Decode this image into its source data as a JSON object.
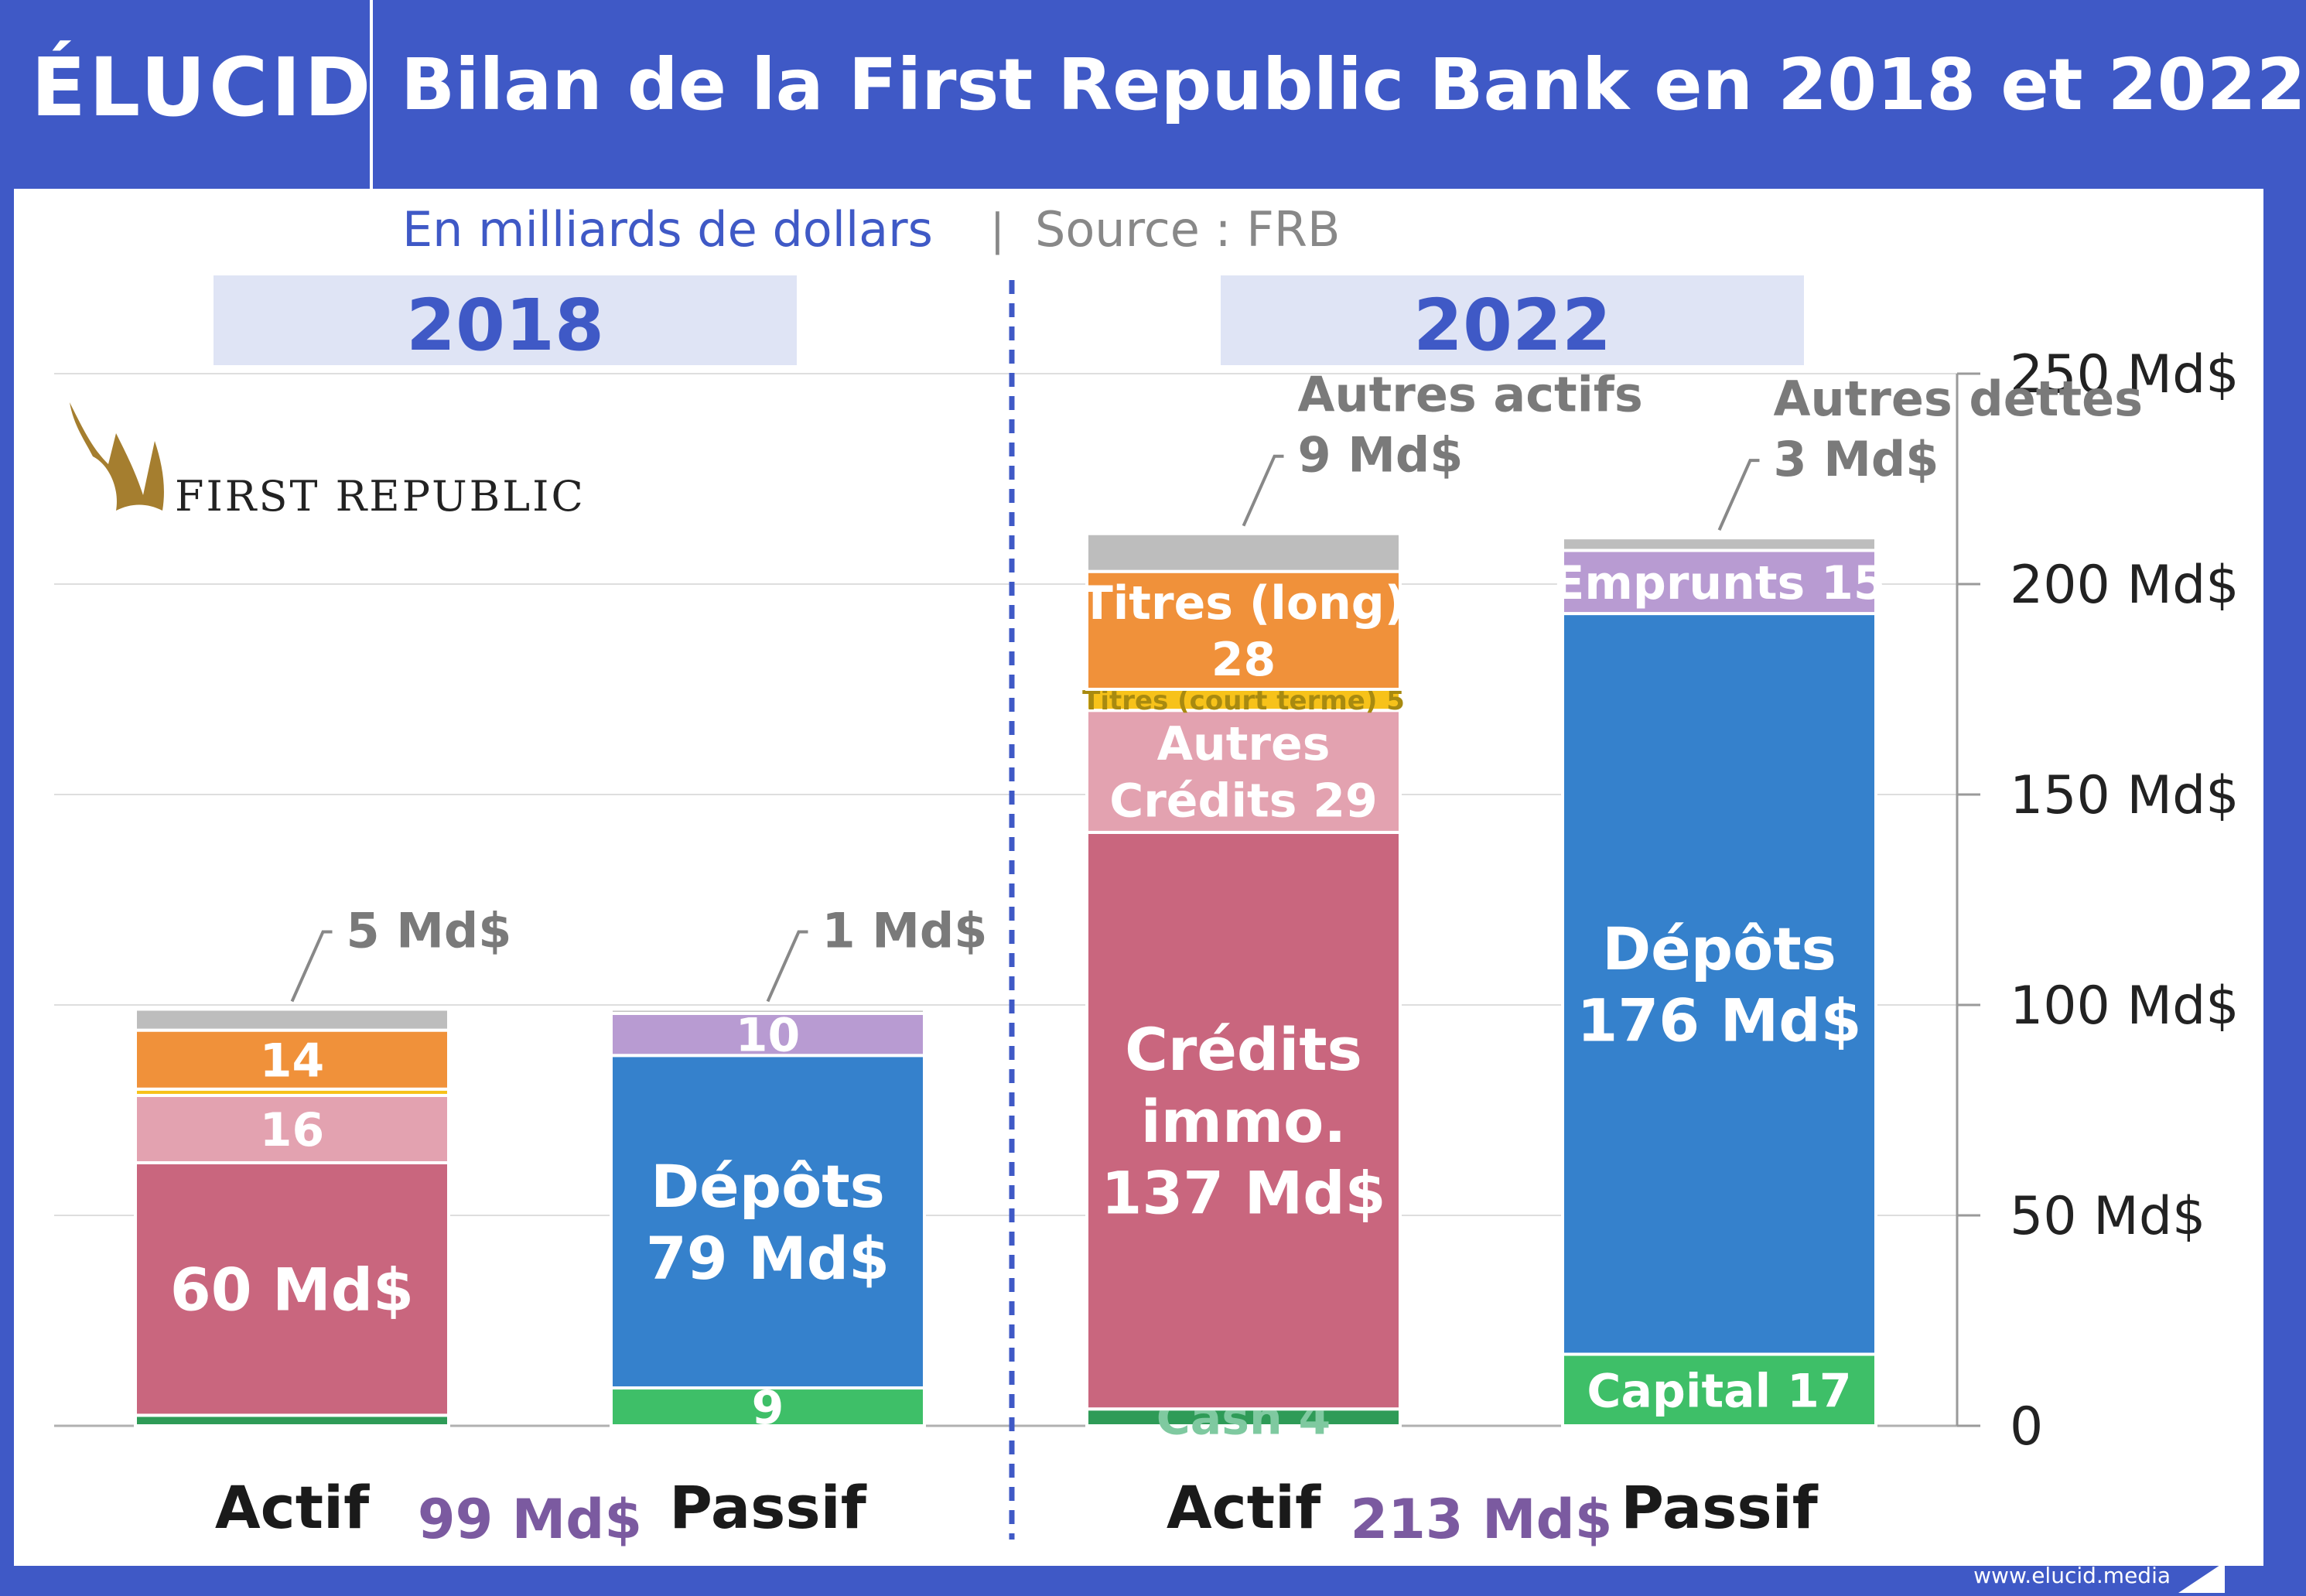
{
  "header": {
    "logo": "ÉLUCID",
    "title": "Bilan de la First Republic Bank en 2018 et 2022"
  },
  "subtitle": {
    "unit": "En milliards de dollars",
    "separator": "|",
    "source": "Source : FRB"
  },
  "brand": {
    "name": "First Republic"
  },
  "footer": {
    "url": "www.elucid.media"
  },
  "colors": {
    "header_bg": "#3f59c6",
    "credits_immo": "#c9667e",
    "autres_credits": "#e3a2b0",
    "titres_court": "#f7c21a",
    "titres_long": "#f0913a",
    "autres_actifs": "#bdbdbd",
    "cash": "#2e9b57",
    "capital": "#3ebf68",
    "depots": "#3581cc",
    "emprunts": "#b89bd2",
    "autres_dettes": "#bdbdbd",
    "total": "#7b5aa0"
  },
  "chart_data": {
    "type": "bar",
    "stacked": true,
    "y_axis": {
      "min": 0,
      "max": 250,
      "ticks": [
        0,
        50,
        100,
        150,
        200,
        250
      ],
      "tick_labels": [
        "0",
        "50 Md$",
        "100 Md$",
        "150 Md$",
        "200 Md$",
        "250 Md$"
      ],
      "position": "right",
      "grid": true
    },
    "groups": [
      {
        "year": "2018",
        "total_label": "99 Md$",
        "bars": [
          {
            "label": "Actif",
            "segments": [
              {
                "key": "cash",
                "value": 2.5,
                "label": ""
              },
              {
                "key": "credits_immo",
                "value": 60,
                "label": "60 Md$"
              },
              {
                "key": "autres_credits",
                "value": 16,
                "label": "16"
              },
              {
                "key": "titres_court",
                "value": 1.5,
                "label": ""
              },
              {
                "key": "titres_long",
                "value": 14,
                "label": "14"
              },
              {
                "key": "autres_actifs",
                "value": 5,
                "label": ""
              }
            ],
            "callout": {
              "text": "5 Md$"
            }
          },
          {
            "label": "Passif",
            "segments": [
              {
                "key": "capital",
                "value": 9,
                "label": "9"
              },
              {
                "key": "depots",
                "value": 79,
                "label": "Dépôts\n79 Md$"
              },
              {
                "key": "emprunts",
                "value": 10,
                "label": "10"
              },
              {
                "key": "autres_dettes",
                "value": 1,
                "label": ""
              }
            ],
            "callout": {
              "text": "1 Md$"
            }
          }
        ]
      },
      {
        "year": "2022",
        "total_label": "213 Md$",
        "bars": [
          {
            "label": "Actif",
            "segments": [
              {
                "key": "cash",
                "value": 4,
                "label": "Cash  4"
              },
              {
                "key": "credits_immo",
                "value": 137,
                "label": "Crédits\nimmo.\n137 Md$"
              },
              {
                "key": "autres_credits",
                "value": 29,
                "label": "Autres\nCrédits 29"
              },
              {
                "key": "titres_court",
                "value": 5,
                "label": "Titres (court terme) 5"
              },
              {
                "key": "titres_long",
                "value": 28,
                "label": "Titres (long)\n28"
              },
              {
                "key": "autres_actifs",
                "value": 9,
                "label": ""
              }
            ],
            "callout": {
              "text": "Autres actifs\n9 Md$"
            }
          },
          {
            "label": "Passif",
            "segments": [
              {
                "key": "capital",
                "value": 17,
                "label": "Capital 17"
              },
              {
                "key": "depots",
                "value": 176,
                "label": "Dépôts\n176 Md$"
              },
              {
                "key": "emprunts",
                "value": 15,
                "label": "Emprunts 15"
              },
              {
                "key": "autres_dettes",
                "value": 3,
                "label": ""
              }
            ],
            "callout": {
              "text": "Autres dettes\n3 Md$"
            }
          }
        ]
      }
    ]
  }
}
